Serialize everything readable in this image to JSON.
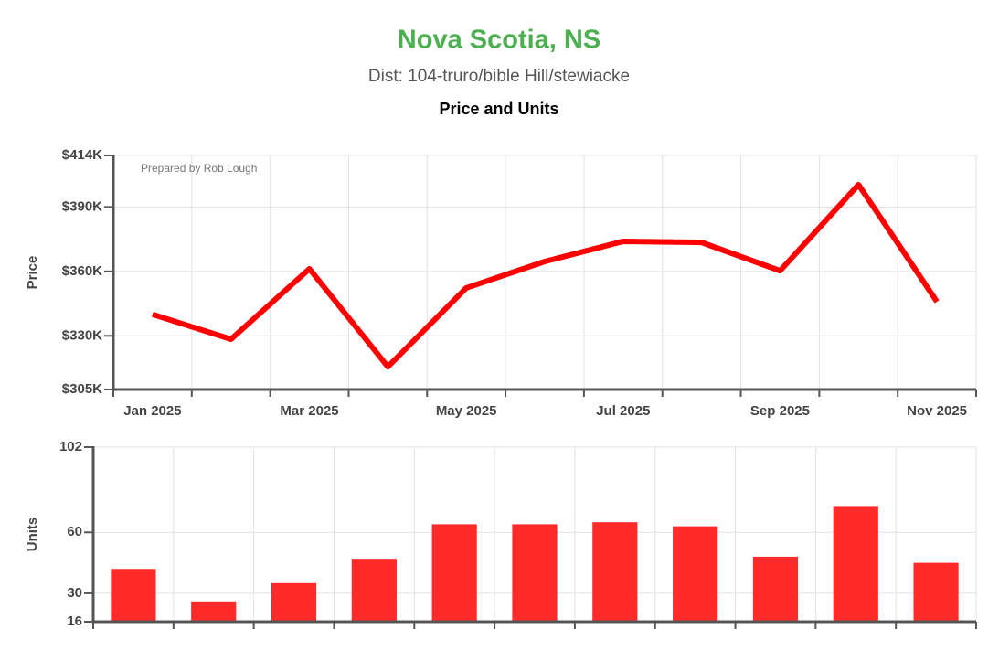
{
  "header": {
    "title": "Nova Scotia, NS",
    "subtitle": "Dist: 104-truro/bible Hill/stewiacke",
    "heading": "Price and Units"
  },
  "chart_data": [
    {
      "type": "line",
      "ylabel": "Price",
      "annotation": "Prepared by Rob Lough",
      "categories": [
        "Jan 2025",
        null,
        "Mar 2025",
        null,
        "May 2025",
        null,
        "Jul 2025",
        null,
        "Sep 2025",
        null,
        "Nov 2025"
      ],
      "series": [
        {
          "name": "Price",
          "color": "#ff0000",
          "values": [
            340000,
            328400,
            361200,
            315600,
            352300,
            364600,
            374000,
            373500,
            360300,
            400400,
            345900
          ]
        }
      ],
      "ylim": [
        305000,
        414000
      ],
      "yticks": [
        {
          "value": 305000,
          "label": "$305K"
        },
        {
          "value": 330000,
          "label": "$330K"
        },
        {
          "value": 360000,
          "label": "$360K"
        },
        {
          "value": 390000,
          "label": "$390K"
        },
        {
          "value": 414000,
          "label": "$414K"
        }
      ],
      "grid": true
    },
    {
      "type": "bar",
      "ylabel": "Units",
      "series": [
        {
          "name": "Units",
          "color": "#ff2a2a",
          "values": [
            42,
            26,
            35,
            47,
            64,
            64,
            65,
            63,
            48,
            73,
            45
          ]
        }
      ],
      "ylim": [
        16,
        102
      ],
      "yticks": [
        16,
        30,
        60,
        102
      ],
      "grid": true
    }
  ]
}
